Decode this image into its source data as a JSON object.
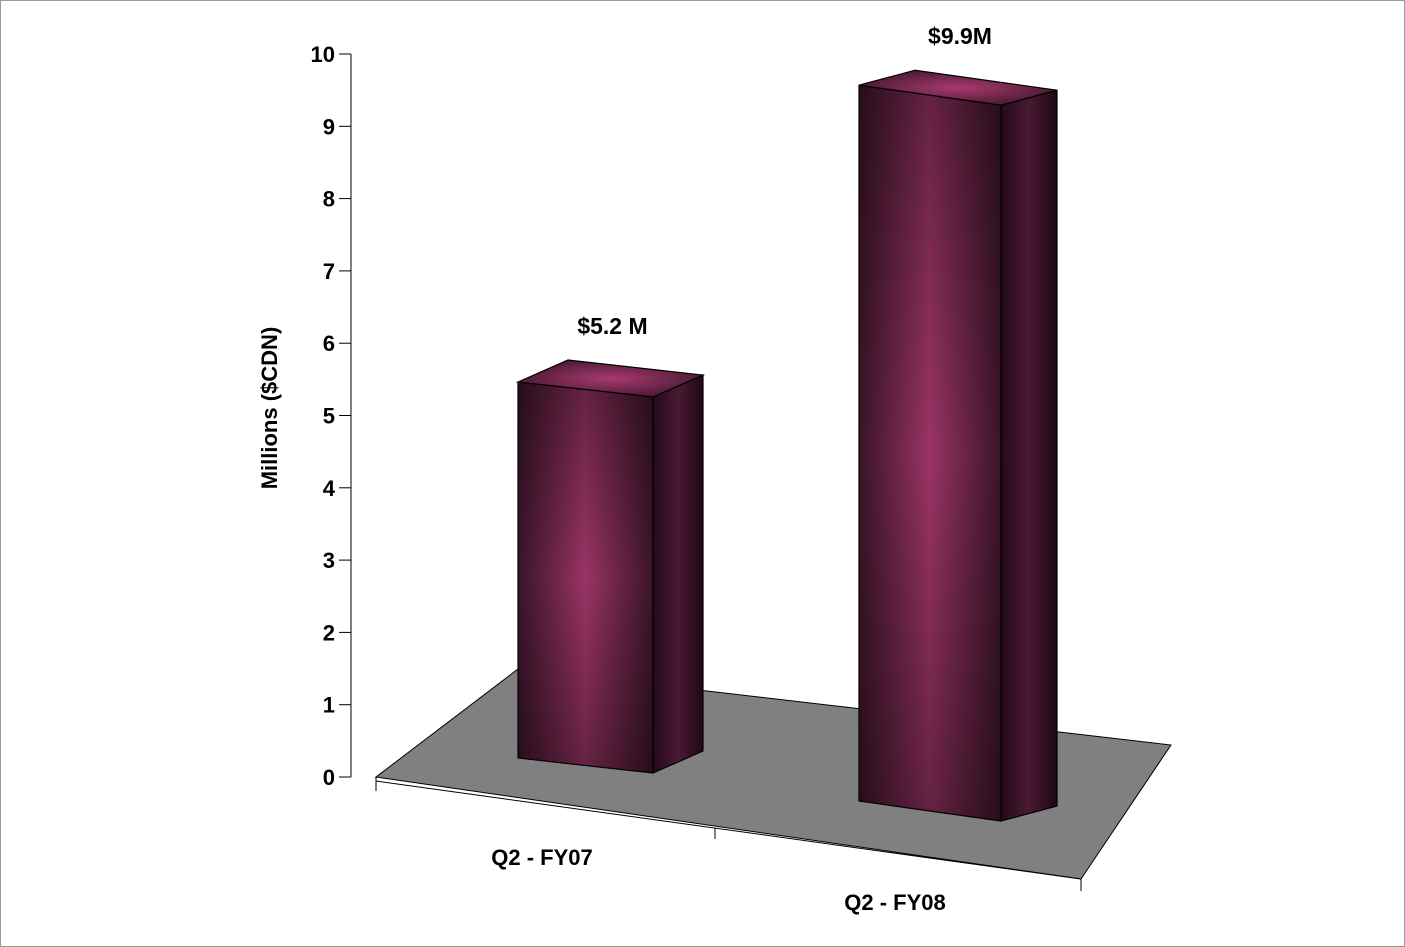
{
  "chart_data": {
    "type": "bar",
    "categories": [
      "Q2 - FY07",
      "Q2 - FY08"
    ],
    "values": [
      5.2,
      9.9
    ],
    "data_labels": [
      "$5.2 M",
      "$9.9M"
    ],
    "title": "",
    "xlabel": "",
    "ylabel": "Millions ($CDN)",
    "ylim": [
      0,
      10
    ],
    "yticks": [
      "0",
      "1",
      "2",
      "3",
      "4",
      "5",
      "6",
      "7",
      "8",
      "9",
      "10"
    ],
    "grid": false,
    "legend": "none",
    "style": "3d-column",
    "colors": {
      "bar_front_center": "#9a3465",
      "bar_front_edge": "#3a1428",
      "bar_side": "#2a0e1c",
      "bar_top": "#8e3160",
      "floor": "#808080",
      "outline": "#000000"
    }
  }
}
